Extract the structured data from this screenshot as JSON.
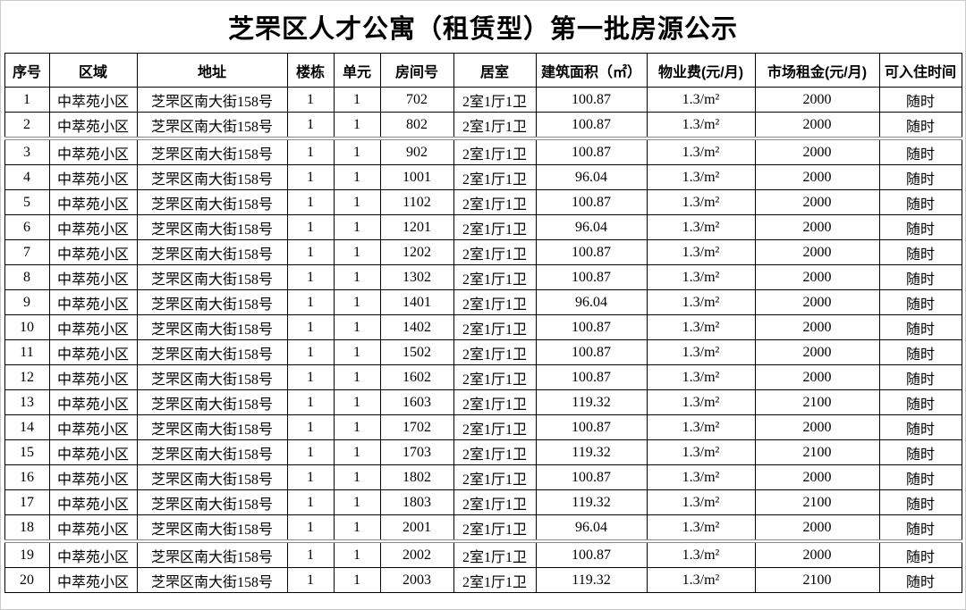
{
  "title": "芝罘区人才公寓（租赁型）第一批房源公示",
  "table": {
    "columns": [
      {
        "key": "index",
        "label": "序号"
      },
      {
        "key": "region",
        "label": "区域"
      },
      {
        "key": "address",
        "label": "地址"
      },
      {
        "key": "building",
        "label": "楼栋"
      },
      {
        "key": "unit",
        "label": "单元"
      },
      {
        "key": "room-number",
        "label": "房间号"
      },
      {
        "key": "layout",
        "label": "居室"
      },
      {
        "key": "area",
        "label": "建筑面积（㎡）"
      },
      {
        "key": "property-fee",
        "label": "物业费(元/月)"
      },
      {
        "key": "market-rent",
        "label": "市场租金(元/月)"
      },
      {
        "key": "move-in-time",
        "label": "可入住时间"
      }
    ],
    "rows": [
      [
        "1",
        "中萃苑小区",
        "芝罘区南大街158号",
        "1",
        "1",
        "702",
        "2室1厅1卫",
        "100.87",
        "1.3/m²",
        "2000",
        "随时"
      ],
      [
        "2",
        "中萃苑小区",
        "芝罘区南大街158号",
        "1",
        "1",
        "802",
        "2室1厅1卫",
        "100.87",
        "1.3/m²",
        "2000",
        "随时"
      ],
      [
        "3",
        "中萃苑小区",
        "芝罘区南大街158号",
        "1",
        "1",
        "902",
        "2室1厅1卫",
        "100.87",
        "1.3/m²",
        "2000",
        "随时"
      ],
      [
        "4",
        "中萃苑小区",
        "芝罘区南大街158号",
        "1",
        "1",
        "1001",
        "2室1厅1卫",
        "96.04",
        "1.3/m²",
        "2000",
        "随时"
      ],
      [
        "5",
        "中萃苑小区",
        "芝罘区南大街158号",
        "1",
        "1",
        "1102",
        "2室1厅1卫",
        "100.87",
        "1.3/m²",
        "2000",
        "随时"
      ],
      [
        "6",
        "中萃苑小区",
        "芝罘区南大街158号",
        "1",
        "1",
        "1201",
        "2室1厅1卫",
        "96.04",
        "1.3/m²",
        "2000",
        "随时"
      ],
      [
        "7",
        "中萃苑小区",
        "芝罘区南大街158号",
        "1",
        "1",
        "1202",
        "2室1厅1卫",
        "100.87",
        "1.3/m²",
        "2000",
        "随时"
      ],
      [
        "8",
        "中萃苑小区",
        "芝罘区南大街158号",
        "1",
        "1",
        "1302",
        "2室1厅1卫",
        "100.87",
        "1.3/m²",
        "2000",
        "随时"
      ],
      [
        "9",
        "中萃苑小区",
        "芝罘区南大街158号",
        "1",
        "1",
        "1401",
        "2室1厅1卫",
        "96.04",
        "1.3/m²",
        "2000",
        "随时"
      ],
      [
        "10",
        "中萃苑小区",
        "芝罘区南大街158号",
        "1",
        "1",
        "1402",
        "2室1厅1卫",
        "100.87",
        "1.3/m²",
        "2000",
        "随时"
      ],
      [
        "11",
        "中萃苑小区",
        "芝罘区南大街158号",
        "1",
        "1",
        "1502",
        "2室1厅1卫",
        "100.87",
        "1.3/m²",
        "2000",
        "随时"
      ],
      [
        "12",
        "中萃苑小区",
        "芝罘区南大街158号",
        "1",
        "1",
        "1602",
        "2室1厅1卫",
        "100.87",
        "1.3/m²",
        "2000",
        "随时"
      ],
      [
        "13",
        "中萃苑小区",
        "芝罘区南大街158号",
        "1",
        "1",
        "1603",
        "2室1厅1卫",
        "119.32",
        "1.3/m²",
        "2100",
        "随时"
      ],
      [
        "14",
        "中萃苑小区",
        "芝罘区南大街158号",
        "1",
        "1",
        "1702",
        "2室1厅1卫",
        "100.87",
        "1.3/m²",
        "2000",
        "随时"
      ],
      [
        "15",
        "中萃苑小区",
        "芝罘区南大街158号",
        "1",
        "1",
        "1703",
        "2室1厅1卫",
        "119.32",
        "1.3/m²",
        "2100",
        "随时"
      ],
      [
        "16",
        "中萃苑小区",
        "芝罘区南大街158号",
        "1",
        "1",
        "1802",
        "2室1厅1卫",
        "100.87",
        "1.3/m²",
        "2000",
        "随时"
      ],
      [
        "17",
        "中萃苑小区",
        "芝罘区南大街158号",
        "1",
        "1",
        "1803",
        "2室1厅1卫",
        "119.32",
        "1.3/m²",
        "2100",
        "随时"
      ],
      [
        "18",
        "中萃苑小区",
        "芝罘区南大街158号",
        "1",
        "1",
        "2001",
        "2室1厅1卫",
        "96.04",
        "1.3/m²",
        "2000",
        "随时"
      ],
      [
        "19",
        "中萃苑小区",
        "芝罘区南大街158号",
        "1",
        "1",
        "2002",
        "2室1厅1卫",
        "100.87",
        "1.3/m²",
        "2000",
        "随时"
      ],
      [
        "20",
        "中萃苑小区",
        "芝罘区南大街158号",
        "1",
        "1",
        "2003",
        "2室1厅1卫",
        "119.32",
        "1.3/m²",
        "2100",
        "随时"
      ]
    ]
  }
}
